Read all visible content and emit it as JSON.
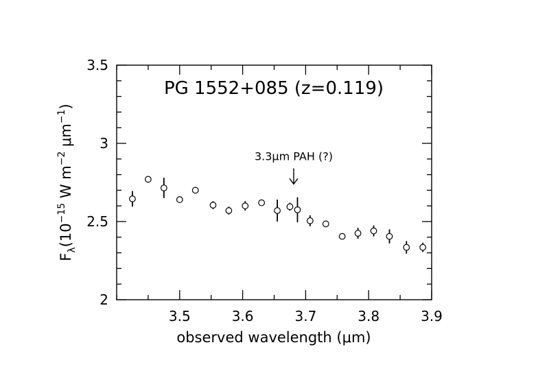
{
  "chart_data": {
    "type": "scatter",
    "title": "PG 1552+085 (z=0.119)",
    "xlabel": "observed wavelength (μm)",
    "ylabel": "F_λ (10^−15 W m^−2 μm^−1)",
    "ylabel_parts": {
      "symbol": "F",
      "subscript": "λ",
      "open": "(10",
      "exp1": "−15",
      "mid": " W m",
      "exp2": "−2",
      "unit": " μm",
      "exp3": "−1",
      "close": ")"
    },
    "xlim": [
      3.4,
      3.9
    ],
    "ylim": [
      2.0,
      3.5
    ],
    "x_ticks": [
      3.5,
      3.6,
      3.7,
      3.8,
      3.9
    ],
    "x_tick_labels": [
      "3.5",
      "3.6",
      "3.7",
      "3.8",
      "3.9"
    ],
    "y_ticks": [
      2.0,
      2.5,
      3.0,
      3.5
    ],
    "y_tick_labels": [
      "2",
      "2.5",
      "3",
      "3.5"
    ],
    "grid": false,
    "marker": "open-circle",
    "series": [
      {
        "points": [
          {
            "x": 3.425,
            "y": 2.645,
            "err": 0.05
          },
          {
            "x": 3.45,
            "y": 2.77,
            "err": 0.02
          },
          {
            "x": 3.475,
            "y": 2.715,
            "err": 0.065
          },
          {
            "x": 3.5,
            "y": 2.64,
            "err": 0.01
          },
          {
            "x": 3.525,
            "y": 2.7,
            "err": 0.02
          },
          {
            "x": 3.553,
            "y": 2.605,
            "err": 0.025
          },
          {
            "x": 3.578,
            "y": 2.57,
            "err": 0.025
          },
          {
            "x": 3.604,
            "y": 2.6,
            "err": 0.03
          },
          {
            "x": 3.63,
            "y": 2.62,
            "err": 0.02
          },
          {
            "x": 3.655,
            "y": 2.57,
            "err": 0.07
          },
          {
            "x": 3.675,
            "y": 2.595,
            "err": 0.025
          },
          {
            "x": 3.687,
            "y": 2.575,
            "err": 0.08
          },
          {
            "x": 3.707,
            "y": 2.505,
            "err": 0.035
          },
          {
            "x": 3.732,
            "y": 2.485,
            "err": 0.01
          },
          {
            "x": 3.758,
            "y": 2.405,
            "err": 0.02
          },
          {
            "x": 3.783,
            "y": 2.425,
            "err": 0.035
          },
          {
            "x": 3.808,
            "y": 2.44,
            "err": 0.035
          },
          {
            "x": 3.833,
            "y": 2.405,
            "err": 0.045
          },
          {
            "x": 3.86,
            "y": 2.335,
            "err": 0.04
          },
          {
            "x": 3.886,
            "y": 2.335,
            "err": 0.03
          }
        ]
      }
    ],
    "annotations": [
      {
        "text": "3.3μm PAH (?)",
        "arrow_x": 3.681,
        "arrow_y_from": 2.84,
        "arrow_y_to": 2.74
      }
    ]
  }
}
